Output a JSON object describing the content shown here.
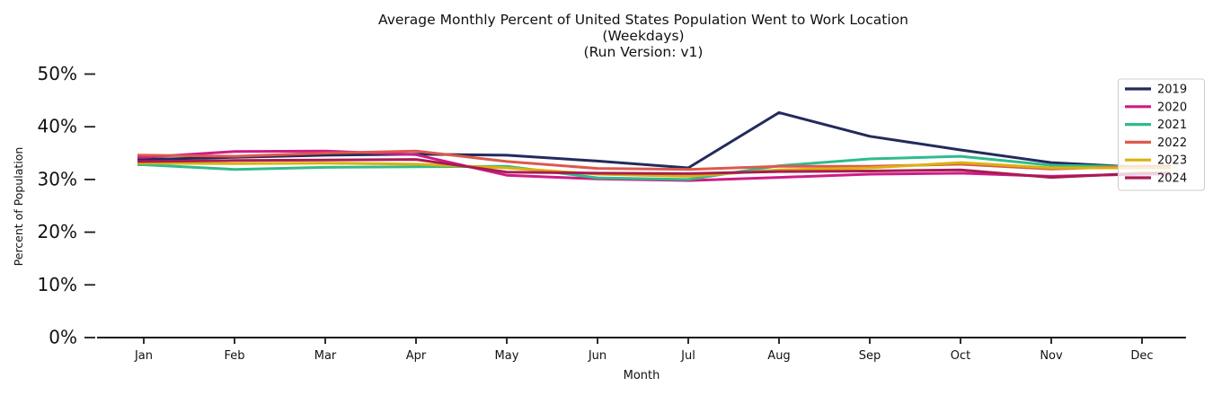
{
  "chart_data": {
    "type": "line",
    "title": "Average Monthly Percent of United States Population Went to Work Location",
    "subtitle_lines": [
      "(Weekdays)",
      "(Run Version: v1)"
    ],
    "xlabel": "Month",
    "ylabel": "Percent of Population",
    "categories": [
      "Jan",
      "Feb",
      "Mar",
      "Apr",
      "May",
      "Jun",
      "Jul",
      "Aug",
      "Sep",
      "Oct",
      "Nov",
      "Dec"
    ],
    "y_tick_labels": [
      "0%",
      "10%",
      "20%",
      "30%",
      "40%",
      "50%"
    ],
    "y_tick_values": [
      0,
      10,
      20,
      30,
      40,
      50
    ],
    "ylim": [
      0,
      52
    ],
    "unit": "percent of population",
    "grid": false,
    "legend_position": "upper-right",
    "axis_color": "#1a1a1a",
    "background_color": "#ffffff",
    "legend_background": "rgba(255,255,255,0.8)",
    "legend_border": "#cccccc",
    "series": [
      {
        "name": "2019",
        "color": "#232a5c",
        "values": [
          33.8,
          34.2,
          34.6,
          34.8,
          34.6,
          33.5,
          32.2,
          42.7,
          38.2,
          35.6,
          33.2,
          32.3
        ]
      },
      {
        "name": "2020",
        "color": "#cf1c86",
        "values": [
          34.2,
          35.3,
          35.4,
          34.7,
          30.8,
          30.1,
          29.8,
          30.4,
          31.0,
          31.2,
          30.6,
          31.0
        ]
      },
      {
        "name": "2021",
        "color": "#2fbb8e",
        "values": [
          32.8,
          31.9,
          32.3,
          32.4,
          32.5,
          30.3,
          30.0,
          32.6,
          33.9,
          34.4,
          32.7,
          32.4
        ]
      },
      {
        "name": "2022",
        "color": "#dd594b",
        "values": [
          34.6,
          34.4,
          35.0,
          35.4,
          33.4,
          32.1,
          31.9,
          32.5,
          32.5,
          32.9,
          32.0,
          32.5
        ]
      },
      {
        "name": "2023",
        "color": "#dcb10d",
        "values": [
          33.1,
          33.0,
          33.1,
          32.9,
          32.2,
          31.0,
          30.6,
          31.8,
          32.2,
          33.2,
          32.2,
          32.2
        ]
      },
      {
        "name": "2024",
        "color": "#a81b53",
        "values": [
          33.4,
          33.6,
          33.7,
          33.8,
          31.4,
          31.2,
          31.1,
          31.5,
          31.6,
          31.8,
          30.4,
          31.2
        ]
      }
    ]
  }
}
